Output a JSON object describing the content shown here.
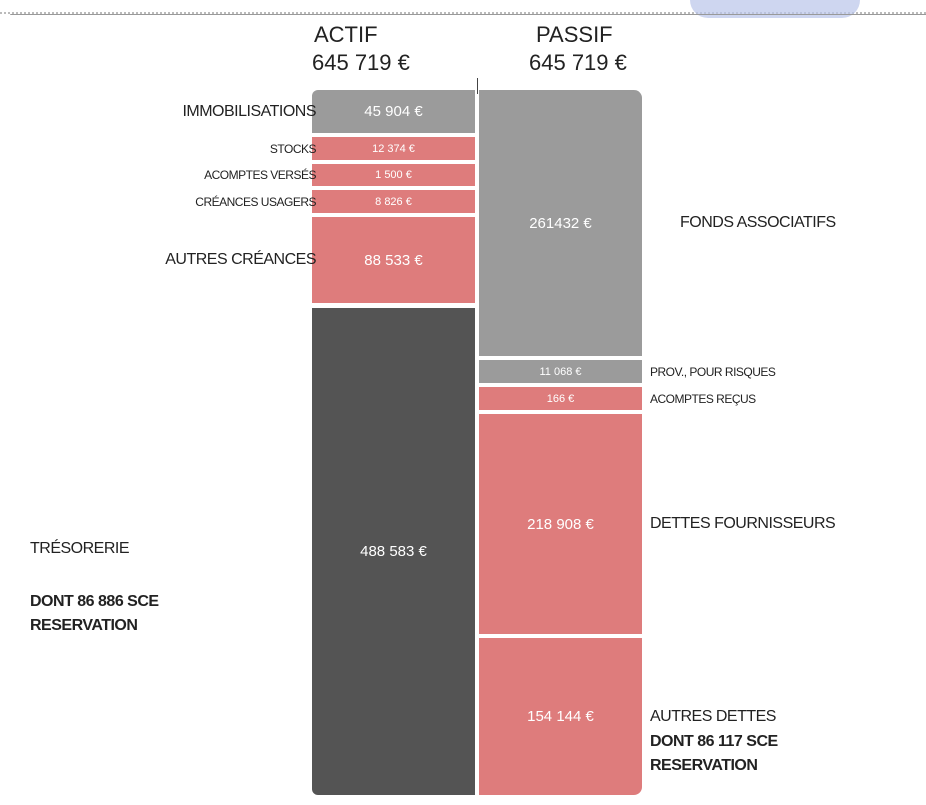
{
  "actif": {
    "title": "ACTIF",
    "total": "645 719 €",
    "items": [
      {
        "label": "IMMOBILISATIONS",
        "amount": "45 904 €"
      },
      {
        "label": "STOCKS",
        "amount": "12 374 €"
      },
      {
        "label": "ACOMPTES VERSÉS",
        "amount": "1 500 €"
      },
      {
        "label": "CRÉANCES USAGERS",
        "amount": "8 826 €"
      },
      {
        "label": "AUTRES CRÉANCES",
        "amount": "88 533 €"
      },
      {
        "label": "TRÉSORERIE",
        "amount": "488 583 €",
        "note": "DONT 86 886 SCE RESERVATION"
      }
    ]
  },
  "passif": {
    "title": "PASSIF",
    "total": "645 719 €",
    "items": [
      {
        "label": "FONDS ASSOCIATIFS",
        "amount": "261432 €"
      },
      {
        "label": "PROV., POUR RISQUES",
        "amount": "11 068 €"
      },
      {
        "label": "ACOMPTES REÇUS",
        "amount": "166 €"
      },
      {
        "label": "DETTES FOURNISSEURS",
        "amount": "218 908 €"
      },
      {
        "label": "AUTRES DETTES",
        "amount": "154 144 €",
        "note": "DONT 86 117 SCE RESERVATION"
      }
    ]
  }
}
